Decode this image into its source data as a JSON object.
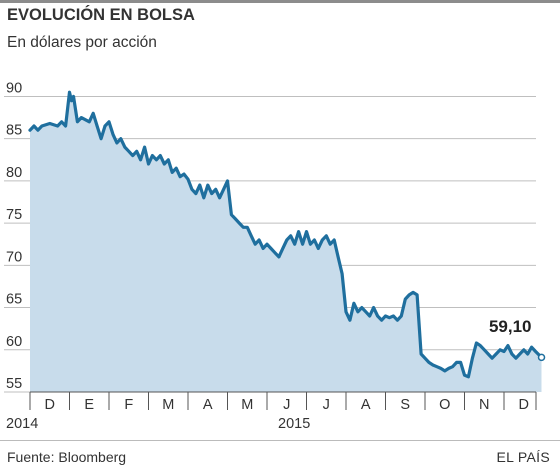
{
  "header": {
    "title": "EVOLUCIÓN EN BOLSA",
    "subtitle": "En dólares por acción"
  },
  "footer": {
    "source": "Fuente: Bloomberg",
    "brand": "EL PAÍS"
  },
  "colors": {
    "line": "#1f6f9e",
    "fill": "#c8dceb",
    "grid": "#bfbfbf",
    "axis": "#555555"
  },
  "chart_data": {
    "type": "area",
    "y_ticks": [
      "90",
      "85",
      "80",
      "75",
      "70",
      "65",
      "60",
      "55"
    ],
    "ylim": [
      55,
      91
    ],
    "month_labels": [
      "D",
      "E",
      "F",
      "M",
      "A",
      "M",
      "J",
      "J",
      "A",
      "S",
      "O",
      "N",
      "D"
    ],
    "year_labels": [
      "2014",
      "2015"
    ],
    "last_value_label": "59,10",
    "x_months": [
      0,
      0.1,
      0.2,
      0.3,
      0.5,
      0.7,
      0.8,
      0.9,
      1.0,
      1.05,
      1.1,
      1.2,
      1.3,
      1.5,
      1.6,
      1.7,
      1.8,
      1.9,
      2.0,
      2.1,
      2.2,
      2.3,
      2.4,
      2.5,
      2.6,
      2.7,
      2.8,
      2.9,
      3.0,
      3.1,
      3.2,
      3.3,
      3.4,
      3.5,
      3.6,
      3.7,
      3.8,
      3.9,
      4.0,
      4.1,
      4.2,
      4.3,
      4.4,
      4.5,
      4.6,
      4.7,
      4.8,
      4.9,
      5.0,
      5.1,
      5.2,
      5.3,
      5.4,
      5.5,
      5.6,
      5.7,
      5.8,
      5.9,
      6.0,
      6.1,
      6.2,
      6.3,
      6.4,
      6.5,
      6.6,
      6.7,
      6.8,
      6.9,
      7.0,
      7.1,
      7.2,
      7.3,
      7.4,
      7.5,
      7.6,
      7.7,
      7.8,
      7.9,
      8.0,
      8.1,
      8.2,
      8.3,
      8.4,
      8.5,
      8.6,
      8.7,
      8.8,
      8.9,
      9.0,
      9.1,
      9.2,
      9.3,
      9.4,
      9.5,
      9.6,
      9.7,
      9.8,
      9.9,
      10.0,
      10.1,
      10.2,
      10.3,
      10.4,
      10.5,
      10.6,
      10.7,
      10.8,
      10.9,
      11.0,
      11.1,
      11.2,
      11.3,
      11.4,
      11.5,
      11.6,
      11.7,
      11.8,
      11.9,
      12.0,
      12.1,
      12.2,
      12.3,
      12.4,
      12.5,
      12.6,
      12.7,
      12.8,
      12.95
    ],
    "values": [
      86.0,
      86.5,
      86.0,
      86.5,
      86.8,
      86.5,
      87.0,
      86.5,
      90.5,
      89.5,
      90.0,
      87.0,
      87.5,
      87.0,
      88.0,
      86.5,
      85.0,
      86.5,
      87.0,
      85.5,
      84.5,
      85.0,
      84.0,
      83.5,
      83.0,
      83.5,
      82.5,
      84.0,
      82.0,
      83.0,
      82.5,
      83.0,
      82.0,
      82.5,
      81.0,
      81.5,
      80.5,
      80.8,
      80.2,
      79.0,
      78.5,
      79.5,
      78.0,
      79.5,
      78.5,
      79.0,
      78.0,
      79.0,
      80.0,
      76.0,
      75.5,
      75.0,
      74.5,
      74.5,
      73.5,
      72.5,
      73.0,
      72.0,
      72.5,
      72.0,
      71.5,
      71.0,
      72.0,
      73.0,
      73.5,
      72.5,
      74.0,
      72.5,
      74.0,
      72.5,
      73.0,
      72.0,
      73.0,
      73.5,
      72.5,
      73.0,
      71.0,
      69.0,
      64.5,
      63.5,
      65.5,
      64.5,
      65.0,
      64.5,
      64.0,
      65.0,
      64.0,
      63.5,
      64.0,
      63.8,
      64.0,
      63.5,
      64.0,
      66.0,
      66.5,
      66.8,
      66.5,
      59.5,
      59.0,
      58.5,
      58.2,
      58.0,
      57.8,
      57.5,
      57.8,
      58.0,
      58.5,
      58.5,
      57.0,
      56.8,
      59.0,
      60.8,
      60.5,
      60.0,
      59.5,
      59.0,
      59.5,
      60.0,
      59.8,
      60.5,
      59.5,
      59.0,
      59.5,
      60.0,
      59.5,
      60.3,
      59.8,
      59.1
    ]
  }
}
